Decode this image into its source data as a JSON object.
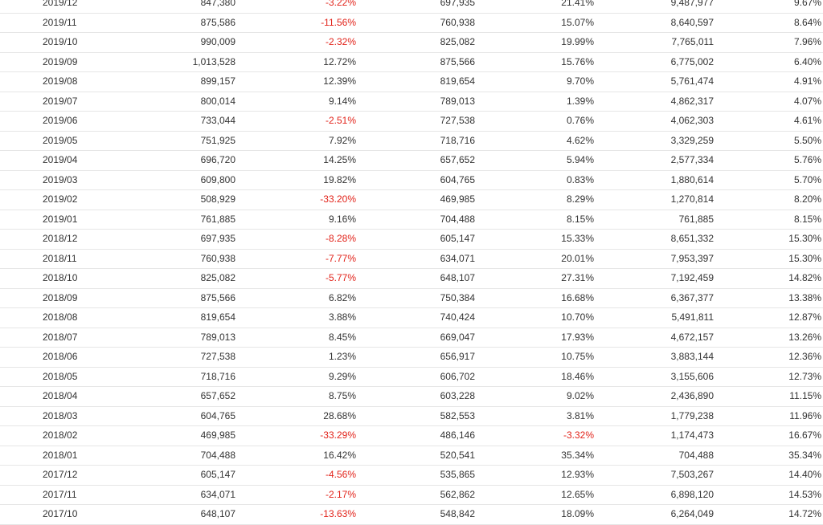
{
  "table": {
    "negative_color": "#e2231a",
    "rows": [
      [
        "2019/12",
        "847,380",
        "-3.22%",
        "697,935",
        "21.41%",
        "9,487,977",
        "9.67%"
      ],
      [
        "2019/11",
        "875,586",
        "-11.56%",
        "760,938",
        "15.07%",
        "8,640,597",
        "8.64%"
      ],
      [
        "2019/10",
        "990,009",
        "-2.32%",
        "825,082",
        "19.99%",
        "7,765,011",
        "7.96%"
      ],
      [
        "2019/09",
        "1,013,528",
        "12.72%",
        "875,566",
        "15.76%",
        "6,775,002",
        "6.40%"
      ],
      [
        "2019/08",
        "899,157",
        "12.39%",
        "819,654",
        "9.70%",
        "5,761,474",
        "4.91%"
      ],
      [
        "2019/07",
        "800,014",
        "9.14%",
        "789,013",
        "1.39%",
        "4,862,317",
        "4.07%"
      ],
      [
        "2019/06",
        "733,044",
        "-2.51%",
        "727,538",
        "0.76%",
        "4,062,303",
        "4.61%"
      ],
      [
        "2019/05",
        "751,925",
        "7.92%",
        "718,716",
        "4.62%",
        "3,329,259",
        "5.50%"
      ],
      [
        "2019/04",
        "696,720",
        "14.25%",
        "657,652",
        "5.94%",
        "2,577,334",
        "5.76%"
      ],
      [
        "2019/03",
        "609,800",
        "19.82%",
        "604,765",
        "0.83%",
        "1,880,614",
        "5.70%"
      ],
      [
        "2019/02",
        "508,929",
        "-33.20%",
        "469,985",
        "8.29%",
        "1,270,814",
        "8.20%"
      ],
      [
        "2019/01",
        "761,885",
        "9.16%",
        "704,488",
        "8.15%",
        "761,885",
        "8.15%"
      ],
      [
        "2018/12",
        "697,935",
        "-8.28%",
        "605,147",
        "15.33%",
        "8,651,332",
        "15.30%"
      ],
      [
        "2018/11",
        "760,938",
        "-7.77%",
        "634,071",
        "20.01%",
        "7,953,397",
        "15.30%"
      ],
      [
        "2018/10",
        "825,082",
        "-5.77%",
        "648,107",
        "27.31%",
        "7,192,459",
        "14.82%"
      ],
      [
        "2018/09",
        "875,566",
        "6.82%",
        "750,384",
        "16.68%",
        "6,367,377",
        "13.38%"
      ],
      [
        "2018/08",
        "819,654",
        "3.88%",
        "740,424",
        "10.70%",
        "5,491,811",
        "12.87%"
      ],
      [
        "2018/07",
        "789,013",
        "8.45%",
        "669,047",
        "17.93%",
        "4,672,157",
        "13.26%"
      ],
      [
        "2018/06",
        "727,538",
        "1.23%",
        "656,917",
        "10.75%",
        "3,883,144",
        "12.36%"
      ],
      [
        "2018/05",
        "718,716",
        "9.29%",
        "606,702",
        "18.46%",
        "3,155,606",
        "12.73%"
      ],
      [
        "2018/04",
        "657,652",
        "8.75%",
        "603,228",
        "9.02%",
        "2,436,890",
        "11.15%"
      ],
      [
        "2018/03",
        "604,765",
        "28.68%",
        "582,553",
        "3.81%",
        "1,779,238",
        "11.96%"
      ],
      [
        "2018/02",
        "469,985",
        "-33.29%",
        "486,146",
        "-3.32%",
        "1,174,473",
        "16.67%"
      ],
      [
        "2018/01",
        "704,488",
        "16.42%",
        "520,541",
        "35.34%",
        "704,488",
        "35.34%"
      ],
      [
        "2017/12",
        "605,147",
        "-4.56%",
        "535,865",
        "12.93%",
        "7,503,267",
        "14.40%"
      ],
      [
        "2017/11",
        "634,071",
        "-2.17%",
        "562,862",
        "12.65%",
        "6,898,120",
        "14.53%"
      ],
      [
        "2017/10",
        "648,107",
        "-13.63%",
        "548,842",
        "18.09%",
        "6,264,049",
        "14.72%"
      ]
    ]
  }
}
